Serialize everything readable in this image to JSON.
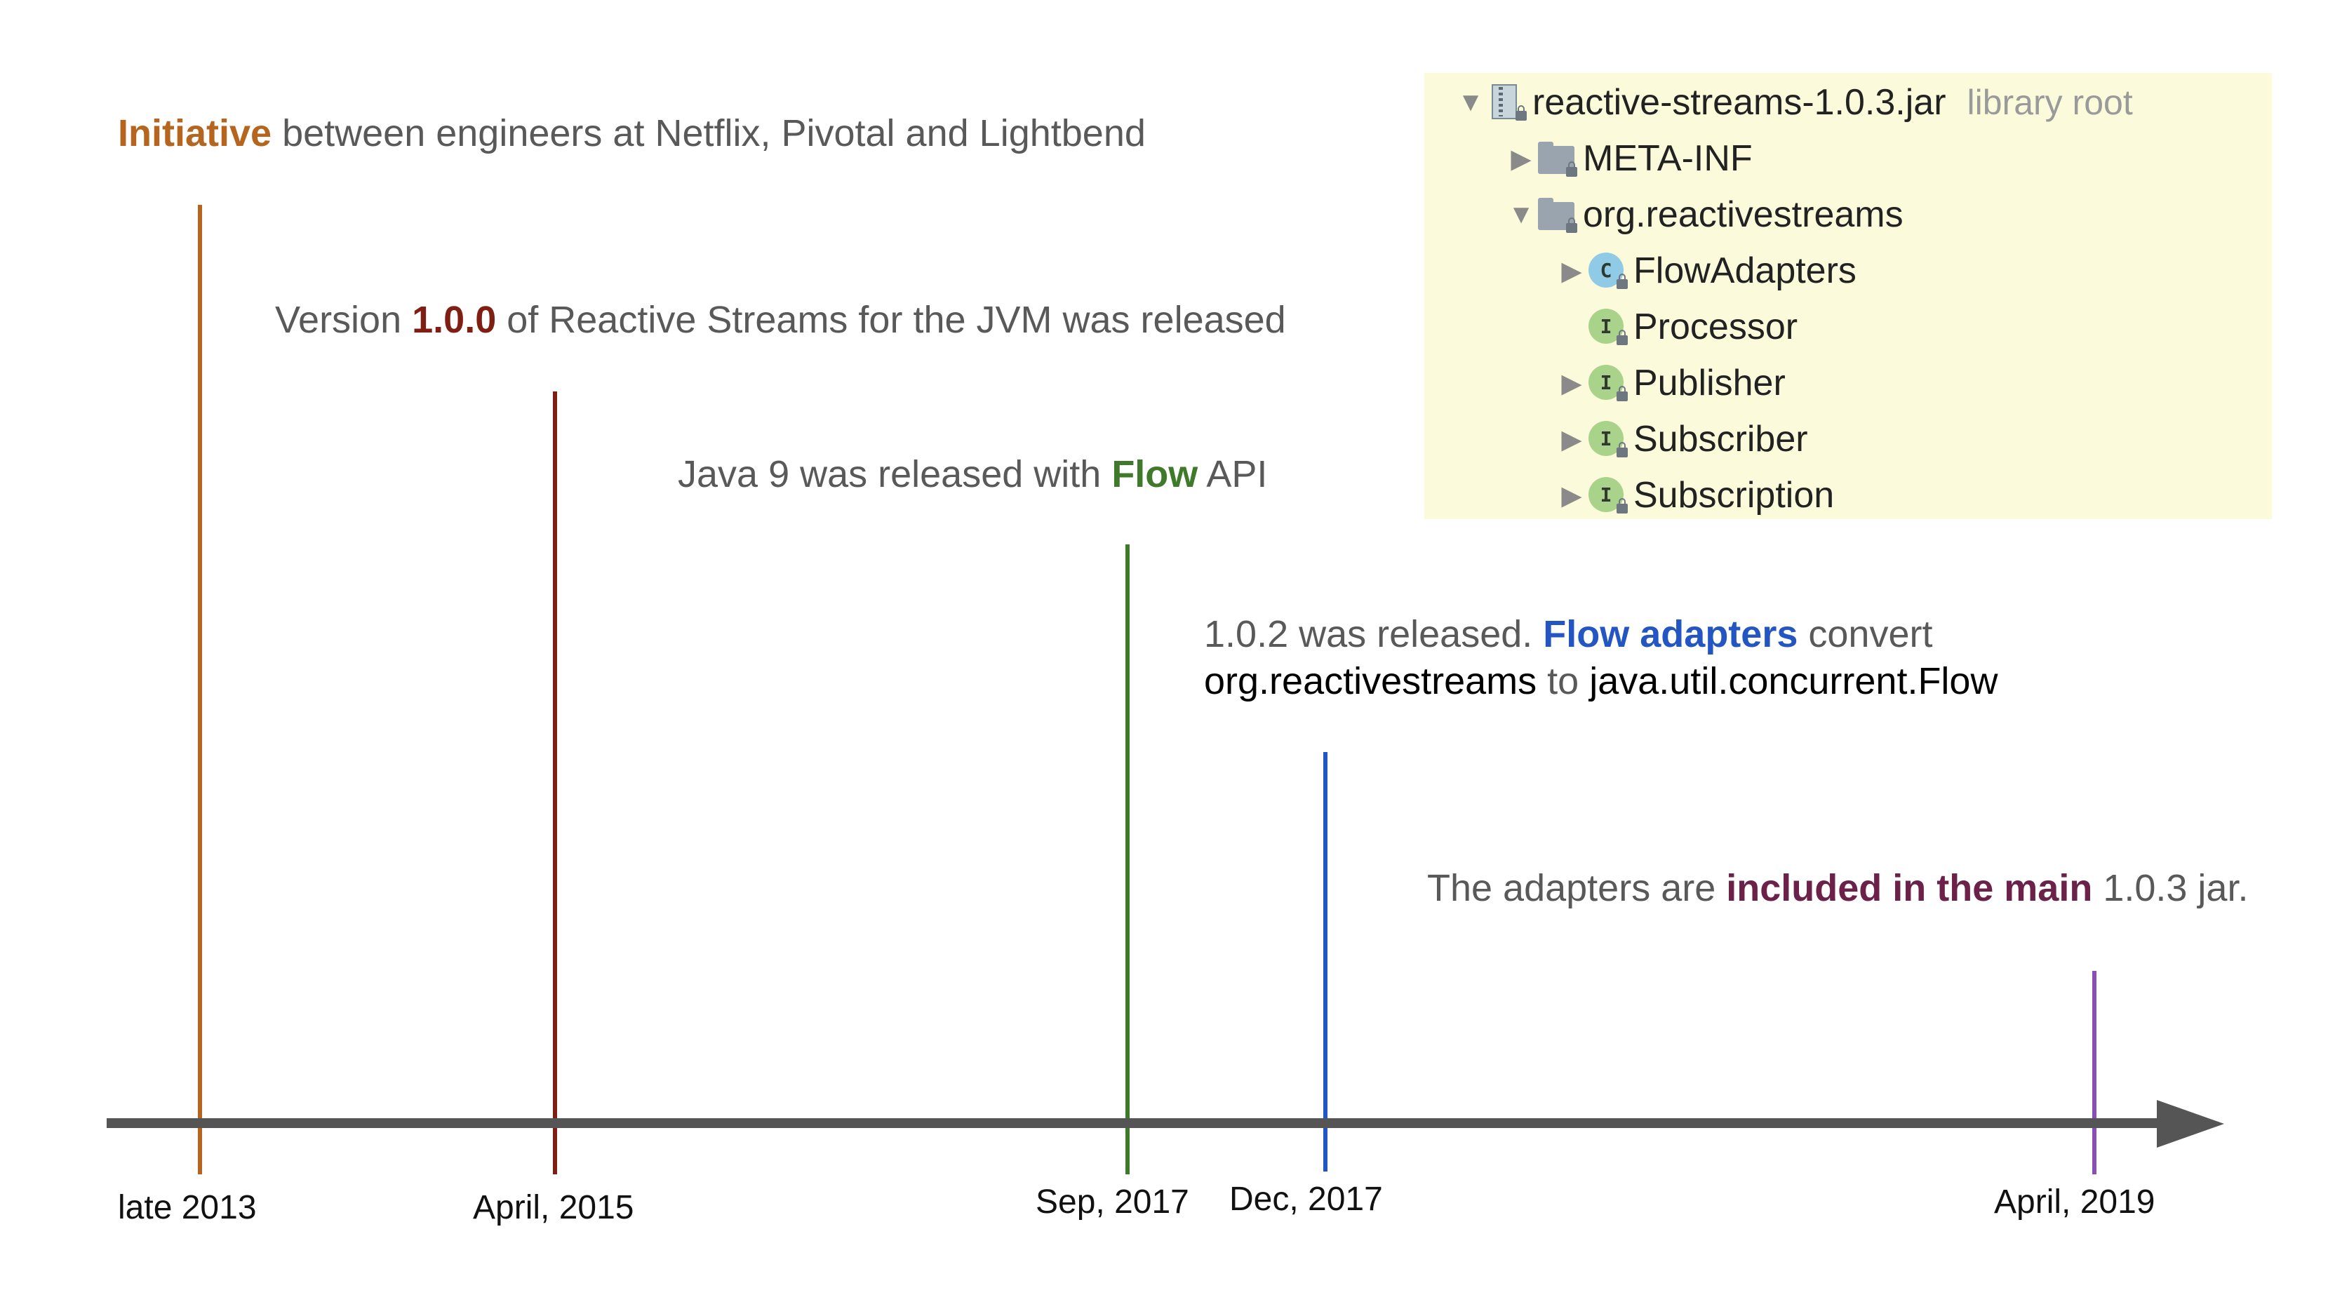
{
  "events": [
    {
      "id": "initiative",
      "date": "late 2013",
      "color": "#b5651d",
      "caption": {
        "highlight": "Initiative",
        "rest": " between engineers at Netflix, Pivotal and Lightbend"
      }
    },
    {
      "id": "v100",
      "date": "April, 2015",
      "color": "#7f1f14",
      "caption": {
        "before": "Version ",
        "highlight": "1.0.0",
        "after": " of Reactive Streams for the JVM was released"
      }
    },
    {
      "id": "java9",
      "date": "Sep, 2017",
      "color": "#3f7a2b",
      "caption": {
        "before": "Java 9 was released with ",
        "highlight": "Flow",
        "after": " API"
      }
    },
    {
      "id": "v102",
      "date": "Dec, 2017",
      "color": "#2356c2",
      "caption": {
        "before": "1.0.2 was released. ",
        "highlight": "Flow adapters",
        "after": " convert",
        "line2_part1": "org.reactivestreams",
        "line2_part2": " to ",
        "line2_part3": "java.util.concurrent.Flow"
      }
    },
    {
      "id": "v103",
      "date": "April, 2019",
      "color": "#8a4fb3",
      "caption": {
        "before": "The adapters are ",
        "highlight": "included in the main",
        "after": " 1.0.3 jar."
      }
    }
  ],
  "tree": {
    "root": {
      "label": "reactive-streams-1.0.3.jar",
      "suffix": "library root",
      "icon": "jar-icon"
    },
    "items": [
      {
        "label": "META-INF",
        "icon": "folder-icon"
      },
      {
        "label": "org.reactivestreams",
        "icon": "folder-icon"
      },
      {
        "label": "FlowAdapters",
        "icon": "class-icon",
        "badge": "C"
      },
      {
        "label": "Processor",
        "icon": "interface-icon",
        "badge": "I"
      },
      {
        "label": "Publisher",
        "icon": "interface-icon",
        "badge": "I"
      },
      {
        "label": "Subscriber",
        "icon": "interface-icon",
        "badge": "I"
      },
      {
        "label": "Subscription",
        "icon": "interface-icon",
        "badge": "I"
      }
    ]
  },
  "colors": {
    "axis": "#555555",
    "caption_text": "#595959",
    "panel_bg": "#fbfbdc",
    "interface_badge": "#a9d28b",
    "class_badge": "#8fcae6"
  }
}
